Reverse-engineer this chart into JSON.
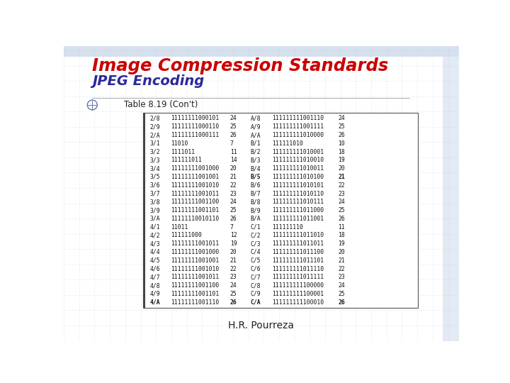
{
  "title1": "Image Compression Standards",
  "title2": "JPEG Encoding",
  "subtitle": "Table 8.19 (Con't)",
  "footer": "H.R. Pourreza",
  "bg_color": "#ffffff",
  "grid_color": "#c8d4e8",
  "title1_color": "#cc0000",
  "title2_color": "#2b2b99",
  "table_left_data": [
    [
      "2/8",
      "11111111000101",
      "24"
    ],
    [
      "2/9",
      "11111111000110",
      "25"
    ],
    [
      "2/A",
      "11111111000111",
      "26"
    ],
    [
      "3/1",
      "11010",
      "7"
    ],
    [
      "3/2",
      "1111011",
      "11"
    ],
    [
      "3/3",
      "111111011",
      "14"
    ],
    [
      "3/4",
      "11111111001000",
      "20"
    ],
    [
      "3/5",
      "11111111001001",
      "21"
    ],
    [
      "3/6",
      "11111111001010",
      "22"
    ],
    [
      "3/7",
      "11111111001011",
      "23"
    ],
    [
      "3/8",
      "11111111001100",
      "24"
    ],
    [
      "3/9",
      "11111111001101",
      "25"
    ],
    [
      "3/A",
      "11111110010110",
      "26"
    ],
    [
      "4/1",
      "11011",
      "7"
    ],
    [
      "4/2",
      "111111000",
      "12"
    ],
    [
      "4/3",
      "11111111001011",
      "19"
    ],
    [
      "4/4",
      "11111111001000",
      "20"
    ],
    [
      "4/5",
      "11111111001001",
      "21"
    ],
    [
      "4/6",
      "11111111001010",
      "22"
    ],
    [
      "4/7",
      "11111111001011",
      "23"
    ],
    [
      "4/8",
      "11111111001100",
      "24"
    ],
    [
      "4/9",
      "11111111001101",
      "25"
    ],
    [
      "4/A",
      "11111111001110",
      "26"
    ]
  ],
  "table_right_data": [
    [
      "A/8",
      "111111111001110",
      "24"
    ],
    [
      "A/9",
      "111111111001111",
      "25"
    ],
    [
      "A/A",
      "111111111010000",
      "26"
    ],
    [
      "B/1",
      "111111010",
      "10"
    ],
    [
      "B/2",
      "111111111010001",
      "18"
    ],
    [
      "B/3",
      "111111111010010",
      "19"
    ],
    [
      "B/4",
      "111111111010011",
      "20"
    ],
    [
      "B/5",
      "111111111010100",
      "21"
    ],
    [
      "B/6",
      "111111111010101",
      "22"
    ],
    [
      "B/7",
      "111111111010110",
      "23"
    ],
    [
      "B/8",
      "111111111010111",
      "24"
    ],
    [
      "B/9",
      "111111111011000",
      "25"
    ],
    [
      "B/A",
      "111111111011001",
      "26"
    ],
    [
      "C/1",
      "111111110",
      "11"
    ],
    [
      "C/2",
      "111111111011010",
      "18"
    ],
    [
      "C/3",
      "111111111011011",
      "19"
    ],
    [
      "C/4",
      "111111111011100",
      "20"
    ],
    [
      "C/5",
      "111111111011101",
      "21"
    ],
    [
      "C/6",
      "111111111011110",
      "22"
    ],
    [
      "C/7",
      "111111111011111",
      "23"
    ],
    [
      "C/8",
      "111111111100000",
      "24"
    ],
    [
      "C/9",
      "111111111100001",
      "25"
    ],
    [
      "C/A",
      "111111111100010",
      "26"
    ]
  ],
  "bold_left": [
    "4/A"
  ],
  "bold_right": [
    "B/5",
    "C/A"
  ]
}
